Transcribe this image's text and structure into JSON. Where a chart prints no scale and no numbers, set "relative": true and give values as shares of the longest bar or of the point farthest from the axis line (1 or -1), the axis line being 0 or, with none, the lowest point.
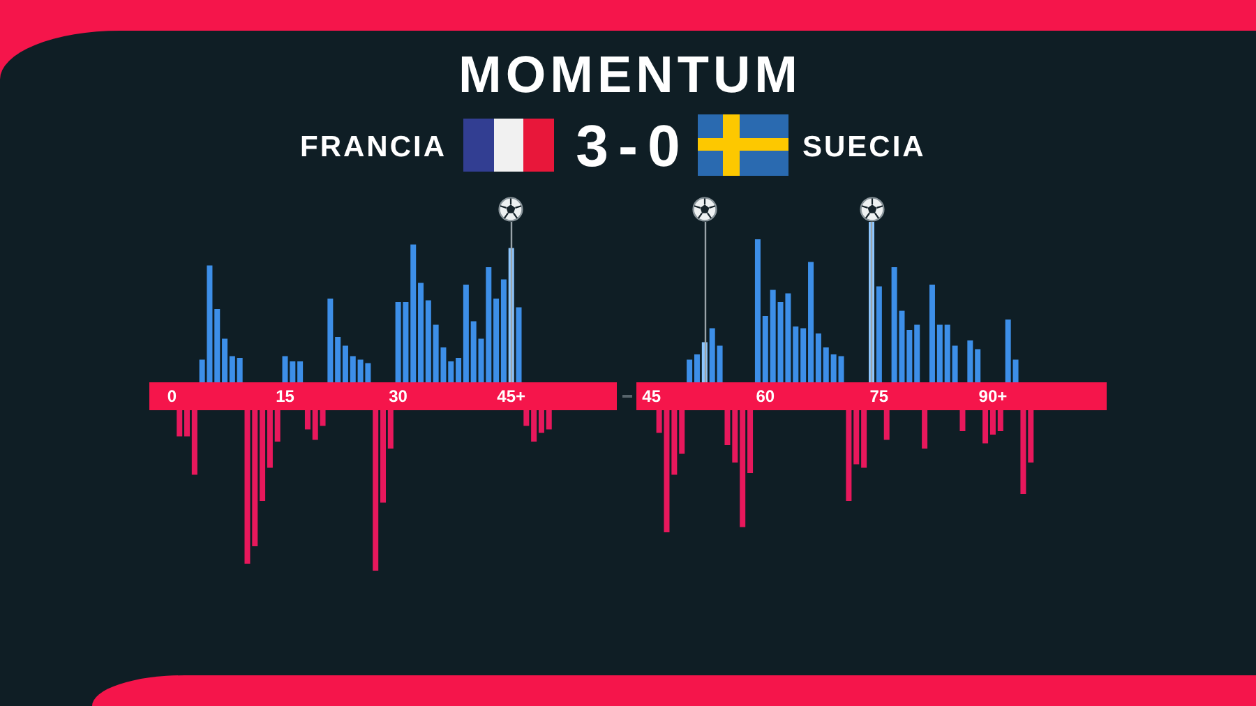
{
  "chart_data": [
    {
      "type": "bar",
      "title": "MOMENTUM",
      "subtitle": "3-0",
      "annotations": [
        "FRANCIA",
        "SUECIA"
      ],
      "relative": true,
      "xlim": [
        -3,
        59
      ],
      "xticks": [
        0,
        15,
        30,
        {
          "value": 45,
          "label": "45+"
        }
      ],
      "series": [
        {
          "x": [
            4,
            5,
            6,
            7,
            8,
            9,
            15,
            16,
            17,
            21,
            22,
            23,
            24,
            25,
            26,
            30,
            31,
            32,
            33,
            34,
            35,
            36,
            37,
            38,
            39,
            40,
            41,
            42,
            43,
            44,
            45,
            46
          ],
          "values": [
            0.21,
            0.75,
            0.5,
            0.33,
            0.23,
            0.22,
            0.23,
            0.2,
            0.2,
            0.56,
            0.34,
            0.29,
            0.23,
            0.21,
            0.19,
            0.54,
            0.54,
            0.87,
            0.65,
            0.55,
            0.41,
            0.28,
            0.2,
            0.22,
            0.64,
            0.43,
            0.33,
            0.74,
            0.56,
            0.67,
            0.85,
            0.51
          ],
          "colors": [
            "#3d8fe8",
            "#3d8fe8",
            "#3d8fe8",
            "#3d8fe8",
            "#3d8fe8",
            "#3d8fe8",
            "#3d8fe8",
            "#3d8fe8",
            "#3d8fe8",
            "#3d8fe8",
            "#3d8fe8",
            "#3d8fe8",
            "#3d8fe8",
            "#3d8fe8",
            "#3d8fe8",
            "#3d8fe8",
            "#3d8fe8",
            "#3d8fe8",
            "#3d8fe8",
            "#3d8fe8",
            "#3d8fe8",
            "#3d8fe8",
            "#3d8fe8",
            "#3d8fe8",
            "#3d8fe8",
            "#3d8fe8",
            "#3d8fe8",
            "#3d8fe8",
            "#3d8fe8",
            "#3d8fe8",
            "#8cc6ff",
            "#3d8fe8"
          ]
        },
        {
          "color": "#e8185c",
          "x": [
            1,
            2,
            3,
            10,
            11,
            12,
            13,
            14,
            18,
            19,
            20,
            27,
            28,
            29,
            47,
            48,
            49,
            50
          ],
          "values": [
            -0.23,
            -0.23,
            -0.45,
            -0.96,
            -0.86,
            -0.6,
            -0.41,
            -0.26,
            -0.19,
            -0.25,
            -0.17,
            -1,
            -0.61,
            -0.3,
            -0.17,
            -0.26,
            -0.21,
            -0.19
          ]
        }
      ],
      "bands": [
        {
          "axis": "y",
          "from": -0.08,
          "to": 0.08,
          "color": "#f5154b"
        }
      ],
      "ref_lines": [
        {
          "axis": "x",
          "value": 45,
          "color": "#9aa4aa"
        }
      ]
    },
    {
      "type": "bar",
      "relative": true,
      "xlim": [
        43,
        105
      ],
      "xticks": [
        45,
        60,
        75,
        {
          "value": 90,
          "label": "90+"
        }
      ],
      "series": [
        {
          "x": [
            50,
            51,
            52,
            53,
            54,
            59,
            60,
            61,
            62,
            63,
            64,
            65,
            66,
            67,
            68,
            69,
            70,
            74,
            75,
            77,
            78,
            79,
            80,
            82,
            83,
            84,
            85,
            87,
            88,
            92,
            93
          ],
          "values": [
            0.21,
            0.24,
            0.31,
            0.39,
            0.29,
            0.9,
            0.46,
            0.61,
            0.54,
            0.59,
            0.4,
            0.39,
            0.77,
            0.36,
            0.28,
            0.24,
            0.23,
            1,
            0.63,
            0.74,
            0.49,
            0.38,
            0.41,
            0.64,
            0.41,
            0.41,
            0.29,
            0.32,
            0.27,
            0.44,
            0.21
          ],
          "colors": [
            "#3d8fe8",
            "#3d8fe8",
            "#8cc6ff",
            "#3d8fe8",
            "#3d8fe8",
            "#3d8fe8",
            "#3d8fe8",
            "#3d8fe8",
            "#3d8fe8",
            "#3d8fe8",
            "#3d8fe8",
            "#3d8fe8",
            "#3d8fe8",
            "#3d8fe8",
            "#3d8fe8",
            "#3d8fe8",
            "#3d8fe8",
            "#8cc6ff",
            "#3d8fe8",
            "#3d8fe8",
            "#3d8fe8",
            "#3d8fe8",
            "#3d8fe8",
            "#3d8fe8",
            "#3d8fe8",
            "#3d8fe8",
            "#3d8fe8",
            "#3d8fe8",
            "#3d8fe8",
            "#3d8fe8",
            "#3d8fe8"
          ]
        },
        {
          "color": "#e8185c",
          "x": [
            46,
            47,
            48,
            49,
            55,
            56,
            57,
            58,
            71,
            72,
            73,
            76,
            81,
            86,
            89,
            90,
            91,
            94,
            95
          ],
          "values": [
            -0.21,
            -0.78,
            -0.45,
            -0.33,
            -0.28,
            -0.38,
            -0.75,
            -0.44,
            -0.6,
            -0.39,
            -0.41,
            -0.25,
            -0.3,
            -0.2,
            -0.27,
            -0.22,
            -0.2,
            -0.56,
            -0.38
          ]
        }
      ],
      "bands": [
        {
          "axis": "y",
          "from": -0.08,
          "to": 0.08,
          "color": "#f5154b"
        }
      ],
      "ref_lines": [
        {
          "axis": "x",
          "value": 52,
          "color": "#9aa4aa"
        },
        {
          "axis": "x",
          "value": 74,
          "color": "#9aa4aa"
        }
      ]
    }
  ]
}
